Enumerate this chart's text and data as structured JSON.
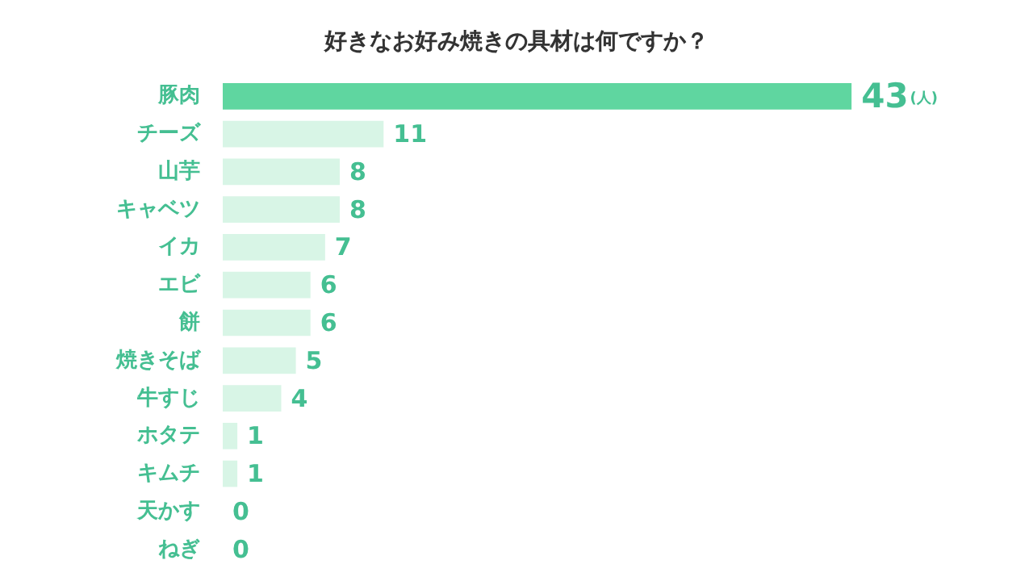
{
  "chart_data": {
    "type": "bar",
    "orientation": "horizontal",
    "title": "好きなお好み焼きの具材は何ですか？",
    "categories": [
      "豚肉",
      "チーズ",
      "山芋",
      "キャベツ",
      "イカ",
      "エビ",
      "餅",
      "焼きそば",
      "牛すじ",
      "ホタテ",
      "キムチ",
      "天かす",
      "ねぎ"
    ],
    "values": [
      43,
      11,
      8,
      8,
      7,
      6,
      6,
      5,
      4,
      1,
      1,
      0,
      0
    ],
    "colors": [
      "#5fd6a0",
      "#d8f5e6",
      "#d8f5e6",
      "#d8f5e6",
      "#d8f5e6",
      "#d8f5e6",
      "#d8f5e6",
      "#d8f5e6",
      "#d8f5e6",
      "#d8f5e6",
      "#d8f5e6",
      "#d8f5e6",
      "#d8f5e6"
    ],
    "value_labels": [
      "43(人)",
      "11",
      "8",
      "8",
      "7",
      "6",
      "6",
      "5",
      "4",
      "1",
      "1",
      "0",
      "0"
    ]
  }
}
